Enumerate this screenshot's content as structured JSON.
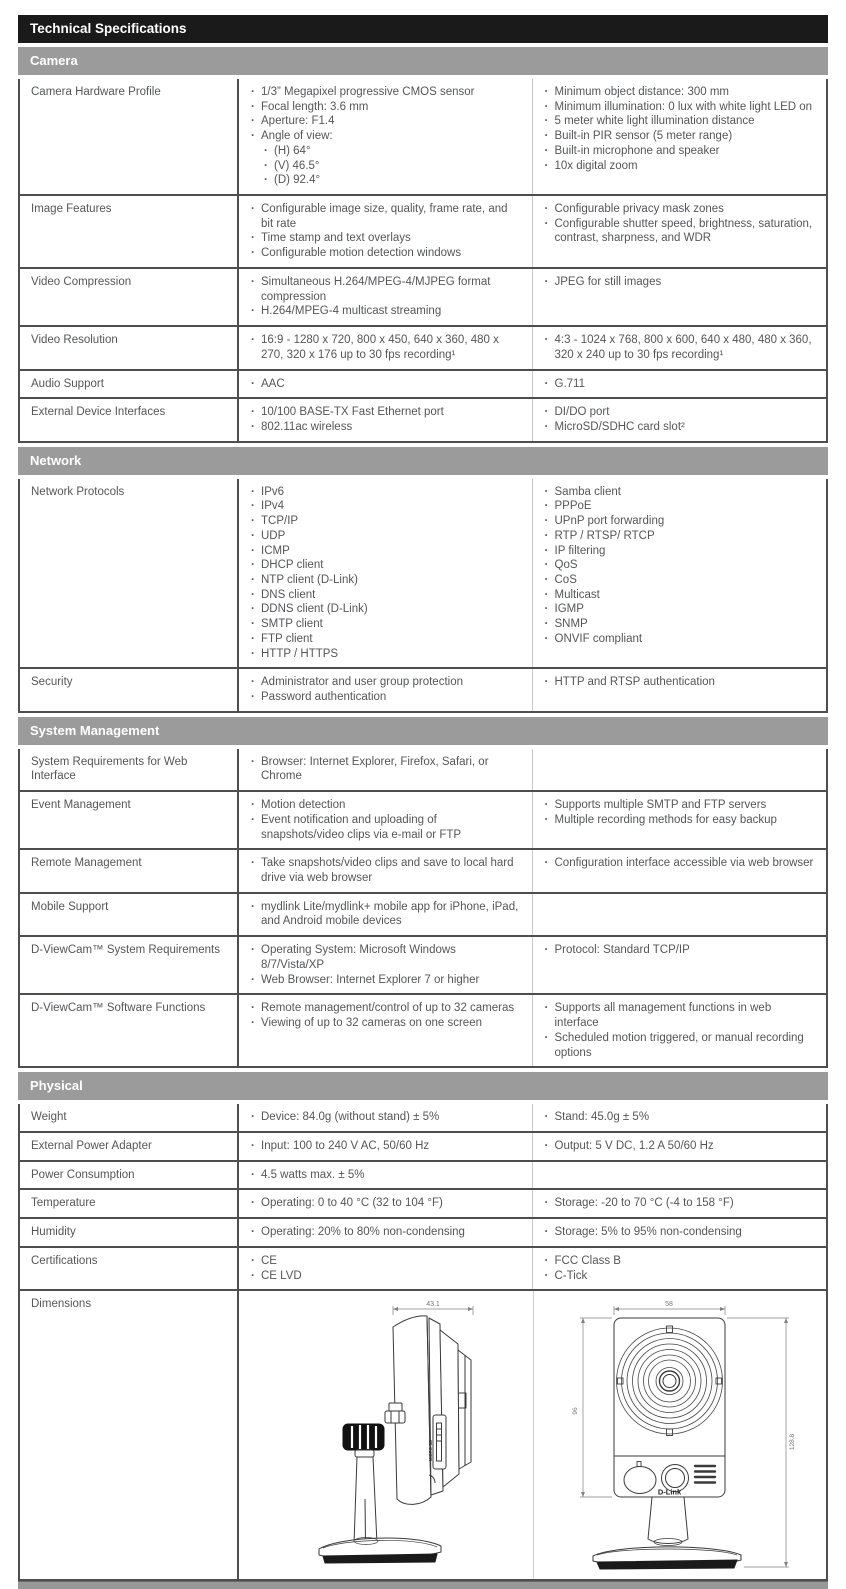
{
  "table": {
    "title": "Technical Specifications",
    "sections": [
      {
        "label": "Camera",
        "rows": [
          {
            "label": "Camera Hardware Profile",
            "col1": [
              "1/3” Megapixel progressive CMOS sensor",
              "Focal length: 3.6 mm",
              "Aperture: F1.4",
              "Angle of view:",
              {
                "text": "(H) 64°",
                "indent": 1
              },
              {
                "text": "(V) 46.5°",
                "indent": 1
              },
              {
                "text": "(D) 92.4°",
                "indent": 1
              }
            ],
            "col2": [
              "Minimum object distance: 300 mm",
              "Minimum illumination: 0 lux with white light LED on",
              "5 meter white light illumination distance",
              "Built-in PIR sensor (5 meter range)",
              "Built-in microphone and speaker",
              "10x digital zoom"
            ]
          },
          {
            "label": "Image Features",
            "col1": [
              "Configurable image size, quality, frame rate, and bit rate",
              "Time stamp and text overlays",
              "Configurable motion detection windows"
            ],
            "col2": [
              "Configurable privacy mask zones",
              "Configurable shutter speed, brightness, saturation, contrast, sharpness, and WDR"
            ]
          },
          {
            "label": "Video Compression",
            "col1": [
              "Simultaneous H.264/MPEG-4/MJPEG format compression",
              "H.264/MPEG-4 multicast streaming"
            ],
            "col2": [
              "JPEG for still images"
            ]
          },
          {
            "label": "Video Resolution",
            "col1": [
              "16:9 - 1280 x 720, 800 x 450, 640 x 360, 480 x 270, 320 x 176 up to 30 fps recording¹"
            ],
            "col2": [
              "4:3 - 1024 x 768, 800 x 600, 640 x 480, 480 x 360, 320 x 240 up to 30 fps recording¹"
            ]
          },
          {
            "label": "Audio Support",
            "col1": [
              "AAC"
            ],
            "col2": [
              "G.711"
            ]
          },
          {
            "label": "External Device Interfaces",
            "col1": [
              "10/100 BASE-TX Fast Ethernet port",
              "802.11ac wireless"
            ],
            "col2": [
              "DI/DO port",
              "MicroSD/SDHC card slot²"
            ]
          }
        ]
      },
      {
        "label": "Network",
        "rows": [
          {
            "label": "Network Protocols",
            "col1": [
              "IPv6",
              "IPv4",
              "TCP/IP",
              "UDP",
              "ICMP",
              "DHCP client",
              "NTP client (D-Link)",
              "DNS client",
              "DDNS client (D-Link)",
              "SMTP client",
              "FTP client",
              "HTTP / HTTPS"
            ],
            "col2": [
              "Samba client",
              "PPPoE",
              "UPnP port forwarding",
              "RTP / RTSP/ RTCP",
              "IP filtering",
              "QoS",
              "CoS",
              "Multicast",
              "IGMP",
              "SNMP",
              "ONVIF compliant"
            ]
          },
          {
            "label": "Security",
            "col1": [
              "Administrator and user group protection",
              "Password authentication"
            ],
            "col2": [
              "HTTP and RTSP authentication"
            ]
          }
        ]
      },
      {
        "label": "System Management",
        "rows": [
          {
            "label": "System Requirements for Web Interface",
            "col1": [
              "Browser: Internet Explorer, Firefox, Safari, or Chrome"
            ],
            "col2": []
          },
          {
            "label": "Event Management",
            "col1": [
              "Motion detection",
              "Event notification and uploading of snapshots/video clips via e-mail or FTP"
            ],
            "col2": [
              "Supports multiple SMTP and FTP servers",
              "Multiple recording methods for easy backup"
            ]
          },
          {
            "label": "Remote Management",
            "col1": [
              "Take snapshots/video clips and save to local hard drive via web browser"
            ],
            "col2": [
              "Configuration interface accessible via web browser"
            ]
          },
          {
            "label": "Mobile Support",
            "col1": [
              "mydlink Lite/mydlink+ mobile app for iPhone, iPad, and Android mobile devices"
            ],
            "col2": []
          },
          {
            "label": "D-ViewCam™ System Requirements",
            "col1": [
              "Operating System: Microsoft Windows 8/7/Vista/XP",
              "Web Browser: Internet Explorer 7 or higher"
            ],
            "col2": [
              "Protocol: Standard TCP/IP"
            ]
          },
          {
            "label": "D-ViewCam™ Software Functions",
            "col1": [
              "Remote management/control of up to 32 cameras",
              "Viewing of up to 32 cameras on one screen"
            ],
            "col2": [
              "Supports all management functions in web interface",
              "Scheduled motion triggered, or manual recording options"
            ]
          }
        ]
      },
      {
        "label": "Physical",
        "rows": [
          {
            "label": "Weight",
            "col1": [
              "Device: 84.0g (without stand) ± 5%"
            ],
            "col2": [
              "Stand: 45.0g ± 5%"
            ]
          },
          {
            "label": "External Power Adapter",
            "col1": [
              "Input: 100 to 240 V AC, 50/60 Hz"
            ],
            "col2": [
              "Output: 5 V DC, 1.2 A 50/60 Hz"
            ]
          },
          {
            "label": "Power Consumption",
            "col1": [
              "4.5 watts max. ± 5%"
            ],
            "col2": []
          },
          {
            "label": "Temperature",
            "col1": [
              "Operating: 0 to 40 °C (32 to 104 °F)"
            ],
            "col2": [
              "Storage: -20 to 70 °C (-4 to 158 °F)"
            ]
          },
          {
            "label": "Humidity",
            "col1": [
              "Operating: 20% to 80% non-condensing"
            ],
            "col2": [
              "Storage: 5% to 95% non-condensing"
            ]
          },
          {
            "label": "Certifications",
            "col1": [
              "CE",
              "CE LVD"
            ],
            "col2": [
              "FCC Class B",
              "C-Tick"
            ]
          },
          {
            "label": "Dimensions",
            "drawing": true
          }
        ]
      }
    ]
  },
  "dimensions_drawing": {
    "side_width": "43.1",
    "front_width": "58",
    "front_height": "96",
    "total_height": "128.8",
    "card_slot_label": "MICRO-SD",
    "logo": "D-Link"
  },
  "colors": {
    "title_bg": "#1a1a1a",
    "section_bg": "#9b9b9b",
    "border_dark": "#4e4e4e",
    "border_light": "#c9c9c9",
    "text": "#55565a"
  }
}
